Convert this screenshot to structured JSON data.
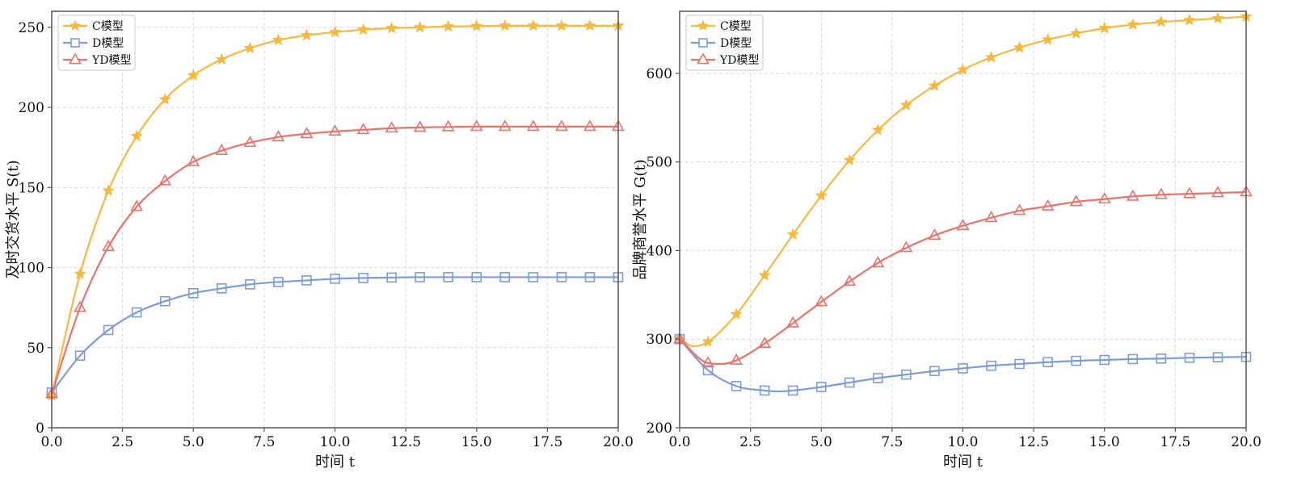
{
  "chart_data": [
    {
      "type": "line",
      "xlabel": "时间  t",
      "ylabel": "及时交货水平  S(t)",
      "xlim": [
        0,
        20
      ],
      "ylim": [
        0,
        260
      ],
      "xticks": [
        0.0,
        2.5,
        5.0,
        7.5,
        10.0,
        12.5,
        15.0,
        17.5,
        20.0
      ],
      "xtick_labels": [
        "0.0",
        "2.5",
        "5.0",
        "7.5",
        "10.0",
        "12.5",
        "15.0",
        "17.5",
        "20.0"
      ],
      "yticks": [
        0,
        50,
        100,
        150,
        200,
        250
      ],
      "ytick_labels": [
        "0",
        "50",
        "100",
        "150",
        "200",
        "250"
      ],
      "grid": true,
      "legend_position": "top-left",
      "series": [
        {
          "name": "C模型",
          "marker": "star",
          "color": "#F5B942",
          "x": [
            0,
            1,
            2,
            3,
            4,
            5,
            6,
            7,
            8,
            9,
            10,
            11,
            12,
            13,
            14,
            15,
            16,
            17,
            18,
            19,
            20
          ],
          "values": [
            20,
            96,
            148,
            182,
            205,
            220,
            230,
            237,
            242,
            245,
            247,
            248.5,
            249.5,
            250,
            250.5,
            250.8,
            251,
            251,
            251,
            251,
            251
          ]
        },
        {
          "name": "D模型",
          "marker": "square",
          "color": "#7E9CD4",
          "x": [
            0,
            1,
            2,
            3,
            4,
            5,
            6,
            7,
            8,
            9,
            10,
            11,
            12,
            13,
            14,
            15,
            16,
            17,
            18,
            19,
            20
          ],
          "values": [
            22,
            45,
            61,
            72,
            79,
            84,
            87,
            89.5,
            91,
            92,
            93,
            93.5,
            93.8,
            94,
            94,
            94,
            94,
            94,
            94,
            94,
            94
          ]
        },
        {
          "name": "YD模型",
          "marker": "triangle",
          "color": "#E8736C",
          "x": [
            0,
            1,
            2,
            3,
            4,
            5,
            6,
            7,
            8,
            9,
            10,
            11,
            12,
            13,
            14,
            15,
            16,
            17,
            18,
            19,
            20
          ],
          "values": [
            21,
            75,
            113,
            138,
            154,
            166,
            173,
            178,
            181.5,
            183.5,
            185,
            186,
            187,
            187.5,
            187.8,
            188,
            188,
            188,
            188,
            188,
            188
          ]
        }
      ]
    },
    {
      "type": "line",
      "xlabel": "时间  t",
      "ylabel": "品牌商誉水平  G(t)",
      "xlim": [
        0,
        20
      ],
      "ylim": [
        200,
        670
      ],
      "xticks": [
        0.0,
        2.5,
        5.0,
        7.5,
        10.0,
        12.5,
        15.0,
        17.5,
        20.0
      ],
      "xtick_labels": [
        "0.0",
        "2.5",
        "5.0",
        "7.5",
        "10.0",
        "12.5",
        "15.0",
        "17.5",
        "20.0"
      ],
      "yticks": [
        200,
        300,
        400,
        500,
        600
      ],
      "ytick_labels": [
        "200",
        "300",
        "400",
        "500",
        "600"
      ],
      "grid": true,
      "legend_position": "top-left",
      "series": [
        {
          "name": "C模型",
          "marker": "star",
          "color": "#F5B942",
          "x": [
            0,
            0.5,
            1,
            2,
            3,
            4,
            5,
            6,
            7,
            8,
            9,
            10,
            11,
            12,
            13,
            14,
            15,
            16,
            17,
            18,
            19,
            20
          ],
          "values": [
            300,
            292,
            297,
            328,
            372,
            418,
            462,
            502,
            536,
            564,
            586,
            604,
            618,
            629,
            638,
            645,
            651,
            655,
            658,
            660,
            662,
            664
          ]
        },
        {
          "name": "D模型",
          "marker": "square",
          "color": "#7E9CD4",
          "x": [
            0,
            1,
            2,
            3,
            3.5,
            4,
            5,
            6,
            7,
            8,
            9,
            10,
            11,
            12,
            13,
            14,
            15,
            16,
            17,
            18,
            19,
            20
          ],
          "values": [
            300,
            265,
            247,
            242,
            241,
            242,
            246,
            251,
            256,
            260,
            264,
            267,
            270,
            272,
            274,
            275.5,
            276.5,
            277.5,
            278,
            279,
            279.5,
            280
          ]
        },
        {
          "name": "YD模型",
          "marker": "triangle",
          "color": "#E8736C",
          "x": [
            0,
            1,
            1.5,
            2,
            3,
            4,
            5,
            6,
            7,
            8,
            9,
            10,
            11,
            12,
            13,
            14,
            15,
            16,
            17,
            18,
            19,
            20
          ],
          "values": [
            300,
            273,
            272,
            276,
            295,
            318,
            342,
            365,
            386,
            403,
            417,
            428,
            437,
            445,
            450,
            455,
            458,
            461,
            463,
            464,
            465,
            466
          ]
        }
      ]
    }
  ]
}
